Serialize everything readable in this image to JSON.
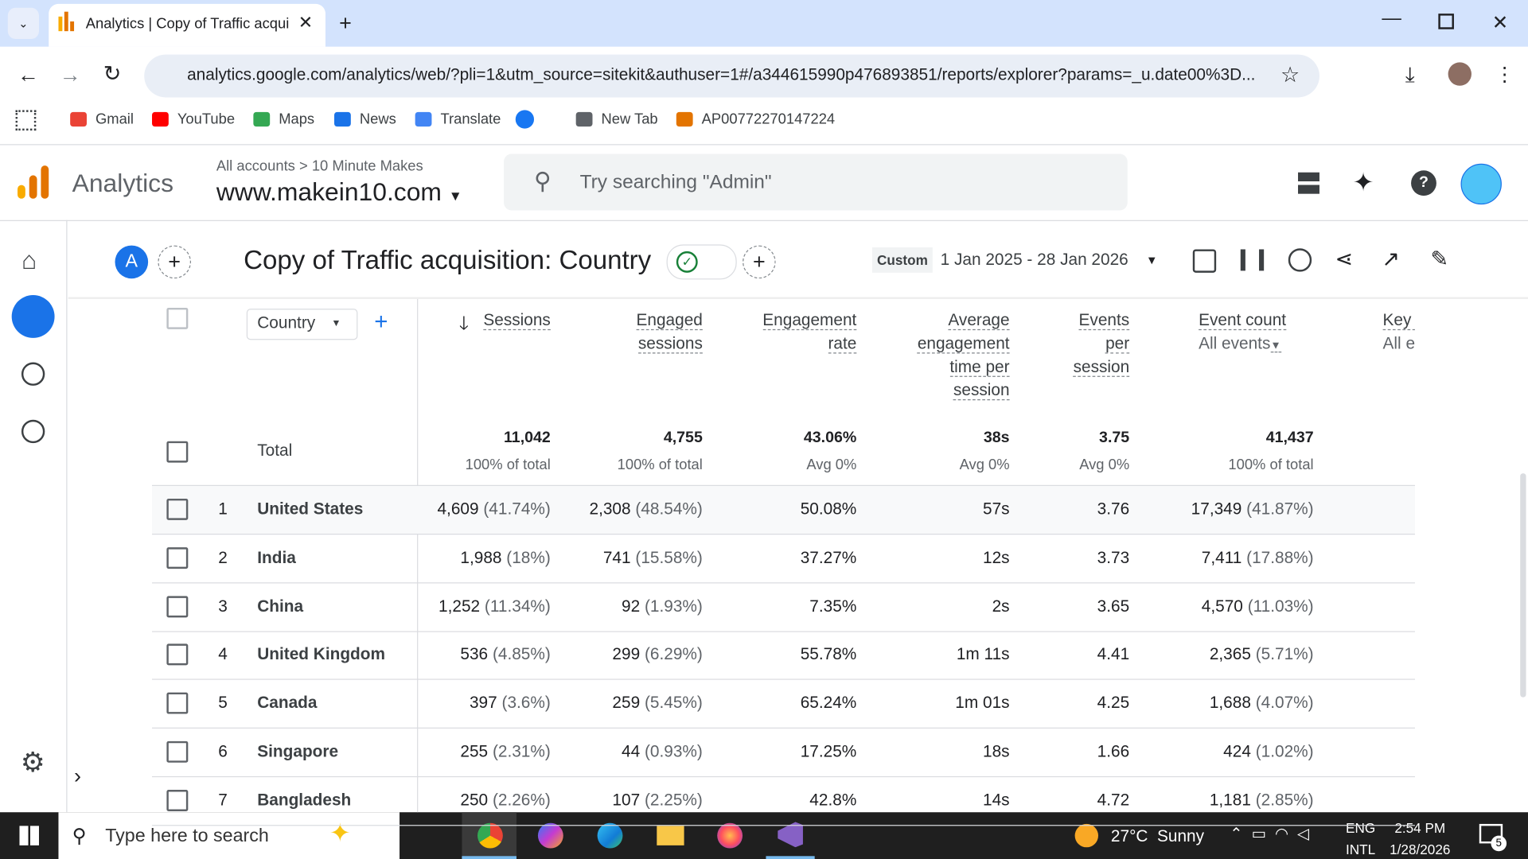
{
  "tab": {
    "title": "Analytics | Copy of Traffic acqui"
  },
  "url": "analytics.google.com/analytics/web/?pli=1&utm_source=sitekit&authuser=1#/a344615990p476893851/reports/explorer?params=_u.date00%3D...",
  "bookmarks": [
    "Gmail",
    "YouTube",
    "Maps",
    "News",
    "Translate",
    "New Tab",
    "AP00772270147224"
  ],
  "header": {
    "app": "Analytics",
    "breadcrumb": [
      "All accounts",
      "10 Minute Makes"
    ],
    "property": "www.makein10.com",
    "search": "Try searching \"Admin\""
  },
  "report": {
    "avatar": "A",
    "title": "Copy of Traffic acquisition: Country",
    "date_label": "Custom",
    "date_range": "1 Jan 2025 - 28 Jan 2026"
  },
  "table": {
    "dimension": "Country",
    "columns": [
      {
        "name": "Sessions"
      },
      {
        "name": "Engaged sessions"
      },
      {
        "name": "Engagement rate"
      },
      {
        "name": "Average engagement time per session"
      },
      {
        "name": "Events per session"
      },
      {
        "name": "Event count",
        "filter": "All events"
      },
      {
        "name": "Key events",
        "filter": "All events"
      }
    ],
    "total": {
      "label": "Total",
      "values": [
        "11,042",
        "4,755",
        "43.06%",
        "38s",
        "3.75",
        "41,437"
      ],
      "subs": [
        "100% of total",
        "100% of total",
        "Avg 0%",
        "Avg 0%",
        "Avg 0%",
        "100% of total"
      ]
    },
    "rows": [
      {
        "rank": 1,
        "country": "United States",
        "cells": [
          [
            "4,609",
            "(41.74%)"
          ],
          [
            "2,308",
            "(48.54%)"
          ],
          [
            "50.08%"
          ],
          [
            "57s"
          ],
          [
            "3.76"
          ],
          [
            "17,349",
            "(41.87%)"
          ]
        ]
      },
      {
        "rank": 2,
        "country": "India",
        "cells": [
          [
            "1,988",
            "(18%)"
          ],
          [
            "741",
            "(15.58%)"
          ],
          [
            "37.27%"
          ],
          [
            "12s"
          ],
          [
            "3.73"
          ],
          [
            "7,411",
            "(17.88%)"
          ]
        ]
      },
      {
        "rank": 3,
        "country": "China",
        "cells": [
          [
            "1,252",
            "(11.34%)"
          ],
          [
            "92",
            "(1.93%)"
          ],
          [
            "7.35%"
          ],
          [
            "2s"
          ],
          [
            "3.65"
          ],
          [
            "4,570",
            "(11.03%)"
          ]
        ]
      },
      {
        "rank": 4,
        "country": "United Kingdom",
        "cells": [
          [
            "536",
            "(4.85%)"
          ],
          [
            "299",
            "(6.29%)"
          ],
          [
            "55.78%"
          ],
          [
            "1m 11s"
          ],
          [
            "4.41"
          ],
          [
            "2,365",
            "(5.71%)"
          ]
        ]
      },
      {
        "rank": 5,
        "country": "Canada",
        "cells": [
          [
            "397",
            "(3.6%)"
          ],
          [
            "259",
            "(5.45%)"
          ],
          [
            "65.24%"
          ],
          [
            "1m 01s"
          ],
          [
            "4.25"
          ],
          [
            "1,688",
            "(4.07%)"
          ]
        ]
      },
      {
        "rank": 6,
        "country": "Singapore",
        "cells": [
          [
            "255",
            "(2.31%)"
          ],
          [
            "44",
            "(0.93%)"
          ],
          [
            "17.25%"
          ],
          [
            "18s"
          ],
          [
            "1.66"
          ],
          [
            "424",
            "(1.02%)"
          ]
        ]
      },
      {
        "rank": 7,
        "country": "Bangladesh",
        "cells": [
          [
            "250",
            "(2.26%)"
          ],
          [
            "107",
            "(2.25%)"
          ],
          [
            "42.8%"
          ],
          [
            "14s"
          ],
          [
            "4.72"
          ],
          [
            "1,181",
            "(2.85%)"
          ]
        ]
      }
    ]
  },
  "taskbar": {
    "search": "Type here to search",
    "temp": "27°C",
    "weather": "Sunny",
    "lang": "ENG",
    "layout": "INTL",
    "time": "2:54 PM",
    "date": "1/28/2026",
    "notifications": "5"
  }
}
